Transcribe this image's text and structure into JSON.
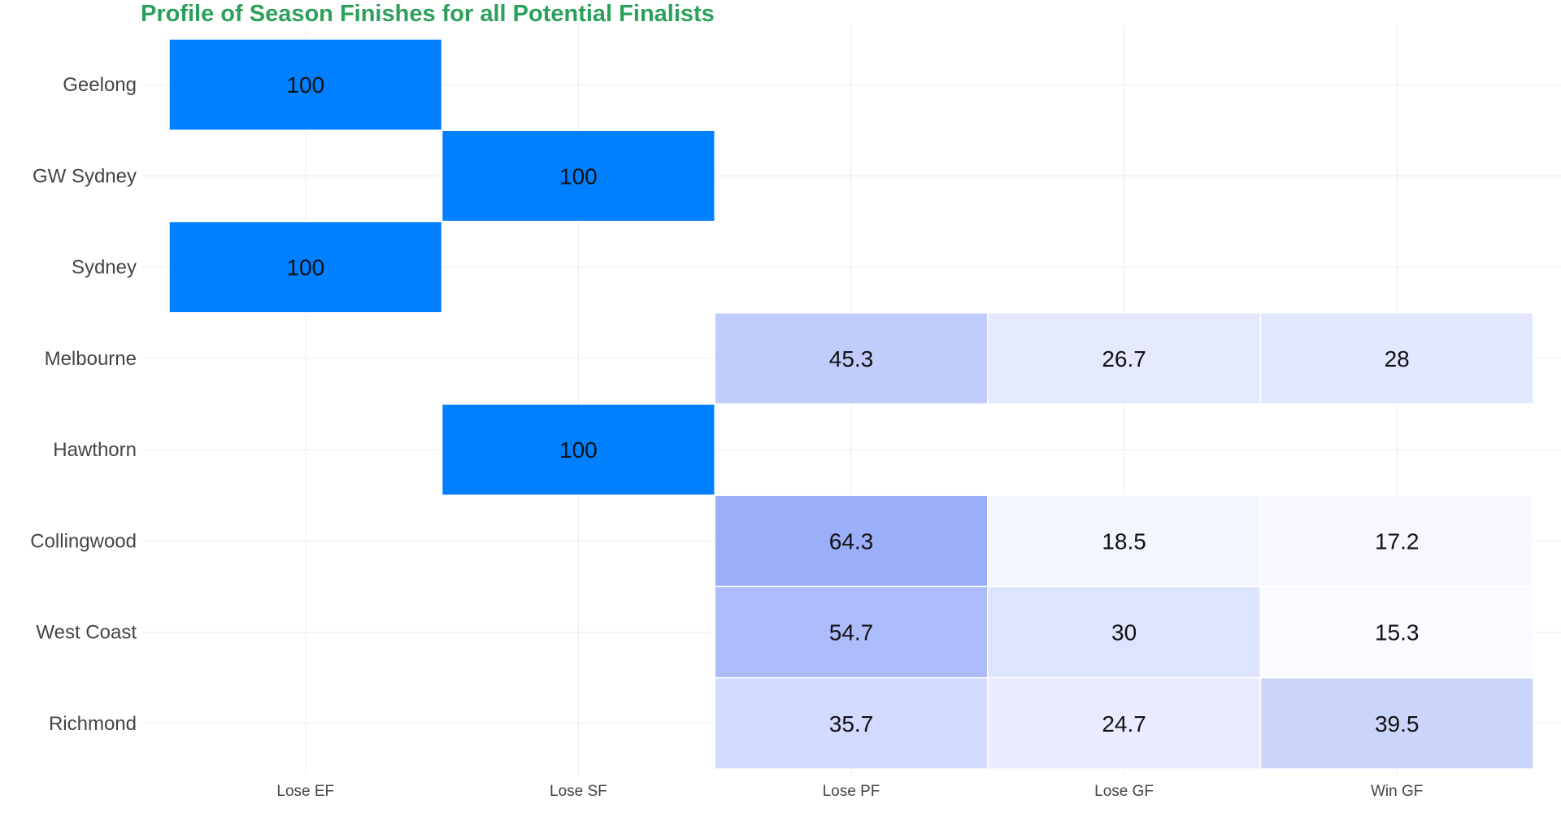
{
  "chart_data": {
    "type": "heatmap",
    "title": "Profile of Season Finishes for all Potential Finalists",
    "xlabel": "",
    "ylabel": "",
    "x_categories": [
      "Lose EF",
      "Lose SF",
      "Lose PF",
      "Lose GF",
      "Win GF"
    ],
    "y_categories": [
      "Geelong",
      "GW Sydney",
      "Sydney",
      "Melbourne",
      "Hawthorn",
      "Collingwood",
      "West Coast",
      "Richmond"
    ],
    "cells": [
      {
        "team": "Geelong",
        "finish": "Lose EF",
        "value": 100,
        "label": "100"
      },
      {
        "team": "GW Sydney",
        "finish": "Lose SF",
        "value": 100,
        "label": "100"
      },
      {
        "team": "Sydney",
        "finish": "Lose EF",
        "value": 100,
        "label": "100"
      },
      {
        "team": "Melbourne",
        "finish": "Lose PF",
        "value": 45.3,
        "label": "45.3"
      },
      {
        "team": "Melbourne",
        "finish": "Lose GF",
        "value": 26.7,
        "label": "26.7"
      },
      {
        "team": "Melbourne",
        "finish": "Win GF",
        "value": 28,
        "label": "28"
      },
      {
        "team": "Hawthorn",
        "finish": "Lose SF",
        "value": 100,
        "label": "100"
      },
      {
        "team": "Collingwood",
        "finish": "Lose PF",
        "value": 64.3,
        "label": "64.3"
      },
      {
        "team": "Collingwood",
        "finish": "Lose GF",
        "value": 18.5,
        "label": "18.5"
      },
      {
        "team": "Collingwood",
        "finish": "Win GF",
        "value": 17.2,
        "label": "17.2"
      },
      {
        "team": "West Coast",
        "finish": "Lose PF",
        "value": 54.7,
        "label": "54.7"
      },
      {
        "team": "West Coast",
        "finish": "Lose GF",
        "value": 30,
        "label": "30"
      },
      {
        "team": "West Coast",
        "finish": "Win GF",
        "value": 15.3,
        "label": "15.3"
      },
      {
        "team": "Richmond",
        "finish": "Lose PF",
        "value": 35.7,
        "label": "35.7"
      },
      {
        "team": "Richmond",
        "finish": "Lose GF",
        "value": 24.7,
        "label": "24.7"
      },
      {
        "team": "Richmond",
        "finish": "Win GF",
        "value": 39.5,
        "label": "39.5"
      }
    ],
    "color_scale": {
      "low": "#ffffff",
      "mid": "#9aaefa",
      "high": "#007fff"
    },
    "grid": true,
    "legend": "none"
  }
}
